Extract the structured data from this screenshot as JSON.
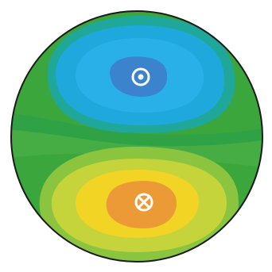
{
  "diagram": {
    "kind": "circular-contour-field",
    "colors": {
      "outline": "#1a1a1a",
      "base_green": "#3aa63c",
      "green_band_1": "#45ad44",
      "green_band_2": "#2fa246",
      "teal_band": "#1fa89a",
      "sky_band": "#1fa8dc",
      "light_blue_band": "#2ab0e8",
      "deep_blue_core": "#3b83cc",
      "lime_band": "#8bc43e",
      "yellow_green_band": "#c5d43a",
      "yellow_band": "#f2d424",
      "orange_core": "#ec9a36",
      "symbol_white": "#ffffff"
    },
    "upper_lobe": {
      "marker": "dot-in-circle-icon",
      "meaning": "out-of-page"
    },
    "lower_lobe": {
      "marker": "cross-in-circle-icon",
      "meaning": "into-page"
    }
  }
}
